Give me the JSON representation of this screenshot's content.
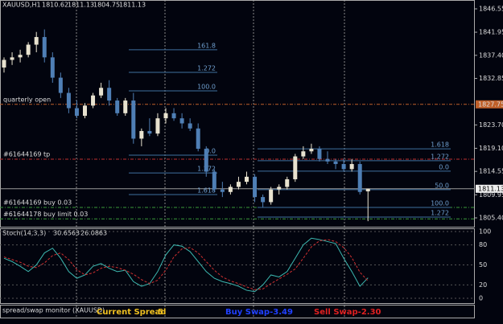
{
  "chart_data": [
    {
      "type": "candlestick",
      "title": "XAUUSD,H1",
      "header": [
        1810.62,
        1811.13,
        1804.75,
        1811.13
      ],
      "open": [
        1835,
        1836.5,
        1837,
        1837.5,
        1839.5,
        1841,
        1837,
        1833,
        1830,
        1827,
        1825.5,
        1827.5,
        1829.5,
        1831,
        1828.5,
        1826,
        1828.5,
        1821,
        1822.5,
        1822,
        1825,
        1826,
        1825,
        1824,
        1823,
        1819,
        1814.5,
        1811,
        1810.5,
        1811.5,
        1812.5,
        1813.5,
        1809.5,
        1808.5,
        1811,
        1811.5,
        1813,
        1817.5,
        1818.5,
        1819,
        1817,
        1816.5,
        1816,
        1815,
        1816,
        1810.62
      ],
      "high": [
        1837,
        1838,
        1838.5,
        1840,
        1842,
        1842.5,
        1838,
        1834,
        1831,
        1828.5,
        1828,
        1830,
        1832,
        1832.5,
        1829,
        1829,
        1830,
        1823,
        1825,
        1826,
        1827,
        1827,
        1826,
        1825,
        1824,
        1819.5,
        1815,
        1812.5,
        1812,
        1813.5,
        1814.5,
        1814,
        1810,
        1811.5,
        1812,
        1813.5,
        1818,
        1819.5,
        1820,
        1819.5,
        1818.5,
        1817,
        1817,
        1817,
        1816.5,
        1811.13
      ],
      "low": [
        1834,
        1835.5,
        1836,
        1837,
        1838,
        1836,
        1832,
        1829,
        1826,
        1825,
        1825,
        1827,
        1829,
        1827.5,
        1825.5,
        1825.5,
        1820,
        1819.5,
        1821.5,
        1821.5,
        1824,
        1824.5,
        1823,
        1822.5,
        1818.5,
        1813.5,
        1810.5,
        1809.5,
        1810,
        1811,
        1812,
        1808.5,
        1807.5,
        1808,
        1810,
        1811,
        1812.5,
        1817,
        1818,
        1816.5,
        1816,
        1815,
        1814.5,
        1814.5,
        1810,
        1804.75
      ],
      "close": [
        1836.5,
        1837,
        1837.5,
        1839.5,
        1841,
        1837,
        1833,
        1830,
        1827,
        1825.5,
        1827.5,
        1829.5,
        1831,
        1828.5,
        1826,
        1828.5,
        1821,
        1822.5,
        1822,
        1825,
        1826,
        1825,
        1824,
        1823,
        1819,
        1814.5,
        1811,
        1810.5,
        1811.5,
        1812.5,
        1813.5,
        1809.5,
        1808.5,
        1811,
        1811.5,
        1813,
        1817.5,
        1818.5,
        1819,
        1817,
        1816.5,
        1816,
        1815,
        1816,
        1810.5,
        1811.13
      ],
      "bull_color": "#e8e2cf",
      "bear_color": "#4f7fb5",
      "ylim": [
        1803.66,
        1848.29
      ],
      "yticks": [
        {
          "value": 1846.55,
          "label": "1846.55"
        },
        1841.95,
        {
          "value": 1837.4,
          "label": "1837.40"
        },
        1832.85,
        {
          "value": 1823.7,
          "label": "1823.70"
        },
        {
          "value": 1819.1,
          "label": "1819.10"
        },
        1814.55,
        1809.95,
        {
          "value": 1805.4,
          "label": "1805.40"
        }
      ],
      "levels": [
        {
          "label": "quarterly open",
          "value": 1827.75,
          "color": "#c0602a",
          "price_label": 1827.75
        },
        {
          "label": "#61644169 tp",
          "value": 1816.95,
          "color": "#c03030"
        },
        {
          "label": "#61644169 buy 0.03",
          "value": 1807.45,
          "color": "#3a9a3a"
        },
        {
          "label": "#61644178 buy limit 0.03",
          "value": 1805.2,
          "color": "#3a9a3a"
        }
      ],
      "current_price": 1811.13,
      "fibs": [
        [
          {
            "label": "161.8",
            "value": 1838.5
          },
          {
            "label": "1.272",
            "value": 1834.05
          },
          {
            "label": "100.0",
            "value": 1830.4
          },
          {
            "label": "0.0",
            "value": 1817.75
          },
          {
            "label": "1.272",
            "value": 1814.25
          },
          {
            "label": "1.618",
            "value": 1810.0
          }
        ],
        [
          {
            "label": "1.618",
            "value": 1819.0
          },
          {
            "label": "1.272",
            "value": 1816.65
          },
          {
            "label": "0.0",
            "value": 1814.6
          },
          {
            "label": "50.0",
            "value": 1810.95
          },
          {
            "label": "100.0",
            "value": 1807.45
          },
          {
            "label": "1.272",
            "value": 1805.55
          }
        ]
      ]
    },
    {
      "type": "line",
      "title": "Stoch(14,3,3)",
      "header": [
        30.6563,
        26.0863
      ],
      "ylim": [
        -8.4,
        104.8
      ],
      "yticks": [
        0,
        20,
        50,
        80,
        100
      ],
      "series": [
        {
          "color": "#3cb8b0",
          "values": [
            60,
            55,
            48,
            40,
            50,
            68,
            75,
            60,
            40,
            30,
            35,
            48,
            52,
            45,
            40,
            42,
            25,
            18,
            22,
            40,
            65,
            80,
            78,
            70,
            55,
            40,
            30,
            25,
            22,
            18,
            12,
            10,
            20,
            35,
            32,
            40,
            60,
            80,
            90,
            88,
            85,
            82,
            60,
            40,
            18,
            30.6563
          ]
        },
        {
          "color": "#d03030",
          "values": [
            62,
            58,
            54,
            48,
            46,
            53,
            64,
            68,
            58,
            43,
            35,
            38,
            45,
            48,
            46,
            42,
            36,
            28,
            22,
            27,
            42,
            62,
            74,
            76,
            68,
            55,
            42,
            32,
            26,
            22,
            17,
            13,
            14,
            22,
            29,
            36,
            44,
            60,
            77,
            86,
            88,
            85,
            76,
            61,
            39,
            26.0863
          ]
        }
      ]
    }
  ],
  "monitor": {
    "title": "spread/swap monitor (XAUUSD)",
    "spread_label": "Current Spread",
    "spread": 5,
    "buy_swap": "Buy Swap-3.49",
    "sell_swap": "Sell Swap-2.30"
  }
}
